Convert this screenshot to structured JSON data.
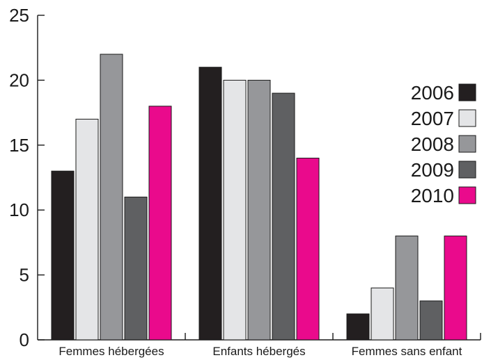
{
  "chart_data": {
    "type": "bar",
    "title": "",
    "xlabel": "",
    "ylabel": "",
    "ylim": [
      0,
      25
    ],
    "yticks": [
      0,
      5,
      10,
      15,
      20,
      25
    ],
    "grid": false,
    "legend_position": "right",
    "categories": [
      "Femmes hébergées",
      "Enfants hébergés",
      "Femmes sans enfant"
    ],
    "series": [
      {
        "name": "2006",
        "color": "#231f20",
        "values": [
          13,
          21,
          2
        ]
      },
      {
        "name": "2007",
        "color": "#e4e5e7",
        "values": [
          17,
          20,
          4
        ]
      },
      {
        "name": "2008",
        "color": "#96979a",
        "values": [
          22,
          20,
          8
        ]
      },
      {
        "name": "2009",
        "color": "#5f6062",
        "values": [
          11,
          19,
          3
        ]
      },
      {
        "name": "2010",
        "color": "#ea0a8c",
        "values": [
          18,
          14,
          8
        ]
      }
    ]
  }
}
